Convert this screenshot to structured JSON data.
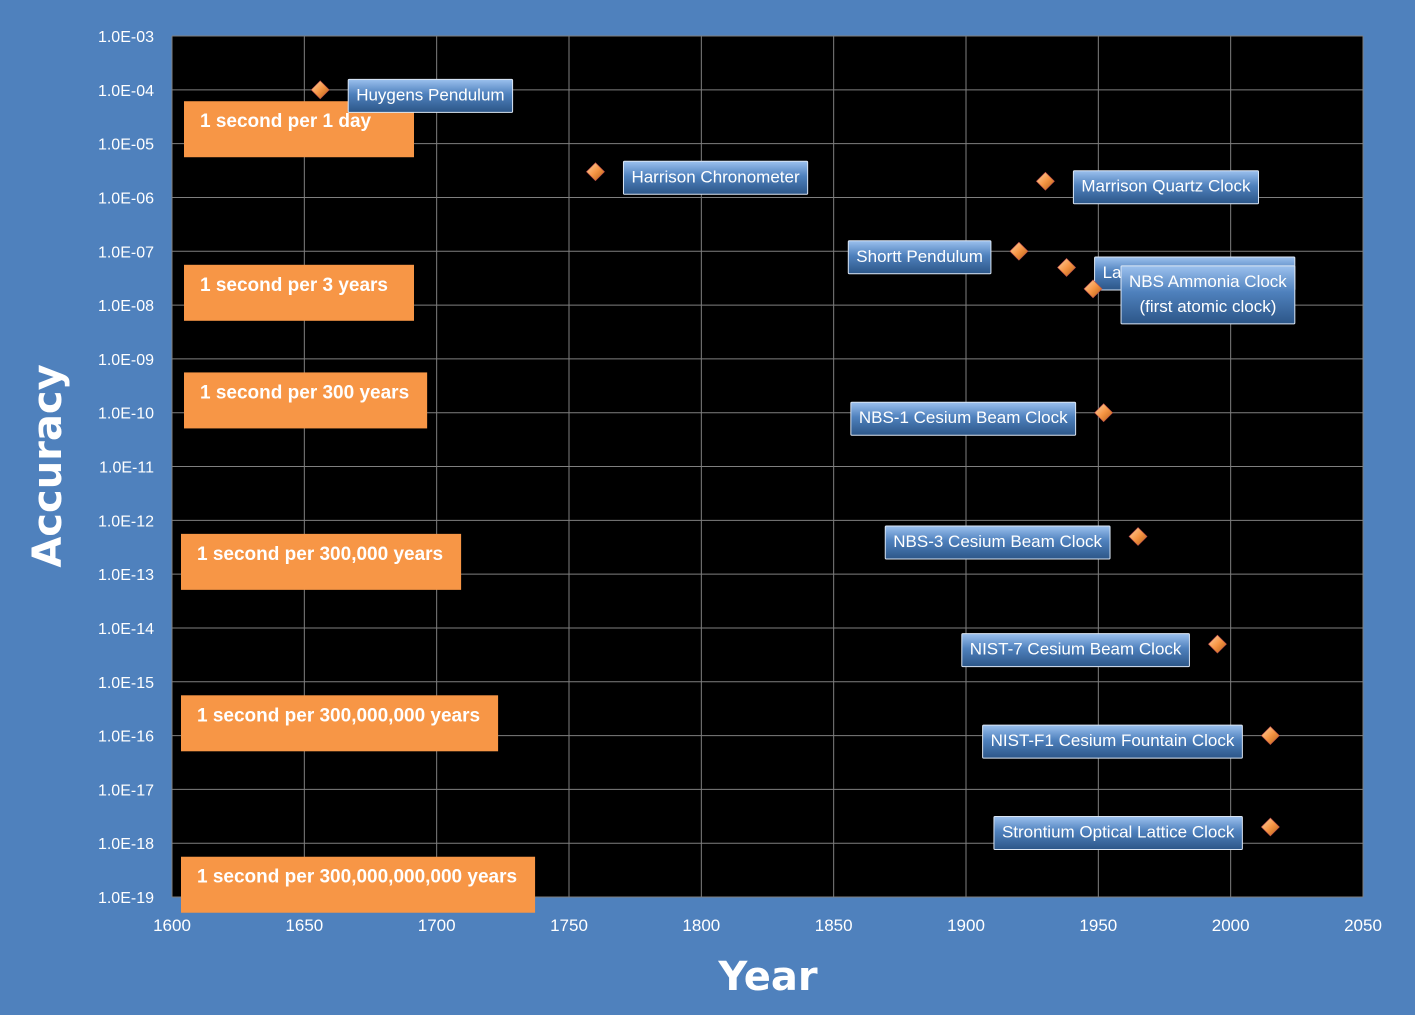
{
  "colors": {
    "background": "#4f81bd",
    "plot_area": "#000000",
    "gridline": "#7f7f7f",
    "marker": "#f79646",
    "band": "#f79646",
    "label_box": "#4f81bd",
    "text": "#ffffff"
  },
  "chart_data": {
    "type": "scatter",
    "title": "",
    "xlabel": "Year",
    "ylabel": "Accuracy",
    "xlim": [
      1600,
      2050
    ],
    "x_ticks": [
      "1600",
      "1650",
      "1700",
      "1750",
      "1800",
      "1850",
      "1900",
      "1950",
      "2000",
      "2050"
    ],
    "y_scale": "log",
    "ylim": [
      1e-19,
      0.001
    ],
    "y_ticks": [
      "1.0E-03",
      "1.0E-04",
      "1.0E-05",
      "1.0E-06",
      "1.0E-07",
      "1.0E-08",
      "1.0E-09",
      "1.0E-10",
      "1.0E-11",
      "1.0E-12",
      "1.0E-13",
      "1.0E-14",
      "1.0E-15",
      "1.0E-16",
      "1.0E-17",
      "1.0E-18",
      "1.0E-19"
    ],
    "grid": true,
    "legend": "none",
    "points": [
      {
        "label": [
          "Huygens Pendulum"
        ],
        "x": 1656,
        "y": 0.0001,
        "label_side": "right"
      },
      {
        "label": [
          "Harrison Chronometer"
        ],
        "x": 1760,
        "y": 3e-06,
        "label_side": "right"
      },
      {
        "label": [
          "Marrison Quartz Clock"
        ],
        "x": 1930,
        "y": 2e-06,
        "label_side": "right"
      },
      {
        "label": [
          "Shortt Pendulum"
        ],
        "x": 1920,
        "y": 1e-07,
        "label_side": "left"
      },
      {
        "label": [
          "Laboratory Quartz Clock"
        ],
        "x": 1938,
        "y": 5e-08,
        "label_side": "right"
      },
      {
        "label": [
          "NBS Ammonia Clock",
          "(first atomic clock)"
        ],
        "x": 1948,
        "y": 2e-08,
        "label_side": "right"
      },
      {
        "label": [
          "NBS-1 Cesium Beam Clock"
        ],
        "x": 1952,
        "y": 1e-10,
        "label_side": "left"
      },
      {
        "label": [
          "NBS-3 Cesium Beam Clock"
        ],
        "x": 1965,
        "y": 5e-13,
        "label_side": "left"
      },
      {
        "label": [
          "NIST-7 Cesium Beam Clock"
        ],
        "x": 1995,
        "y": 5e-15,
        "label_side": "left"
      },
      {
        "label": [
          "NIST-F1 Cesium Fountain Clock"
        ],
        "x": 2015,
        "y": 1e-16,
        "label_side": "left"
      },
      {
        "label": [
          "Strontium Optical Lattice Clock"
        ],
        "x": 2015,
        "y": 2e-18,
        "label_side": "left"
      }
    ],
    "annotations": [
      {
        "text": "1 second per 1 day",
        "y": 1.1574e-05
      },
      {
        "text": "1 second per 3 years",
        "y": 1.0563e-08
      },
      {
        "text": "1 second per 300 years",
        "y": 1.0563e-10
      },
      {
        "text": "1 second per 300,000 years",
        "y": 1.0563e-13
      },
      {
        "text": "1 second per 300,000,000 years",
        "y": 1.0563e-16
      },
      {
        "text": "1 second per 300,000,000,000 years",
        "y": 1.0563e-19
      }
    ]
  }
}
